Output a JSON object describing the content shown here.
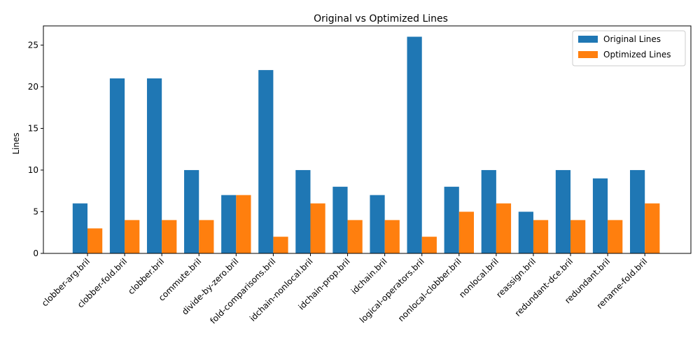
{
  "chart_data": {
    "type": "bar",
    "title": "Original vs Optimized Lines",
    "xlabel": "",
    "ylabel": "Lines",
    "ylim": [
      0,
      27.3
    ],
    "yticks": [
      0,
      5,
      10,
      15,
      20,
      25
    ],
    "grid": false,
    "legend_position": "top-right",
    "categories": [
      "clobber-arg.bril",
      "clobber-fold.bril",
      "clobber.bril",
      "commute.bril",
      "divide-by-zero.bril",
      "fold-comparisons.bril",
      "idchain-nonlocal.bril",
      "idchain-prop.bril",
      "idchain.bril",
      "logical-operators.bril",
      "nonlocal-clobber.bril",
      "nonlocal.bril",
      "reassign.bril",
      "redundant-dce.bril",
      "redundant.bril",
      "rename-fold.bril"
    ],
    "series": [
      {
        "name": "Original Lines",
        "color": "#1f77b4",
        "values": [
          6,
          21,
          21,
          10,
          7,
          22,
          10,
          8,
          7,
          26,
          8,
          10,
          5,
          10,
          9,
          10
        ]
      },
      {
        "name": "Optimized Lines",
        "color": "#ff7f0e",
        "values": [
          3,
          4,
          4,
          4,
          7,
          2,
          6,
          4,
          4,
          2,
          5,
          6,
          4,
          4,
          4,
          6
        ]
      }
    ]
  }
}
